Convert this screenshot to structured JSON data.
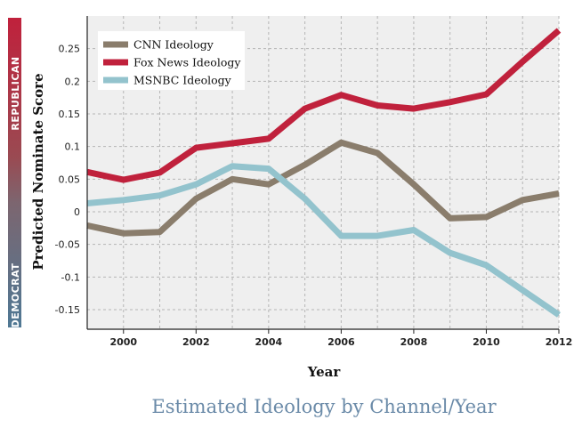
{
  "chart_data": {
    "type": "line",
    "title": "Estimated Ideology by Channel/Year",
    "xlabel": "Year",
    "ylabel": "Predicted Nominate Score",
    "xlim": [
      1999,
      2012
    ],
    "ylim": [
      -0.18,
      0.3
    ],
    "x_ticks": [
      2000,
      2002,
      2004,
      2006,
      2008,
      2010,
      2012
    ],
    "y_ticks": [
      -0.15,
      -0.1,
      -0.05,
      0,
      0.05,
      0.1,
      0.15,
      0.2,
      0.25
    ],
    "y_tick_labels": [
      "-0.15",
      "-0.1",
      "-0.05",
      "0",
      "0.05",
      "0.1",
      "0.15",
      "0.2",
      "0.25"
    ],
    "grid": true,
    "legend_position": "top-left",
    "side_labels": {
      "top": "REPUBLICAN",
      "bottom": "DEMOCRAT"
    },
    "x": [
      1999,
      2000,
      2001,
      2002,
      2003,
      2004,
      2005,
      2006,
      2007,
      2008,
      2009,
      2010,
      2011,
      2012
    ],
    "series": [
      {
        "name": "CNN Ideology",
        "color": "#8a7d6c",
        "values": [
          -0.021,
          -0.033,
          -0.031,
          0.02,
          0.05,
          0.042,
          0.072,
          0.106,
          0.09,
          0.042,
          -0.01,
          -0.008,
          0.018,
          0.028
        ]
      },
      {
        "name": "Fox News Ideology",
        "color": "#c0213c",
        "values": [
          0.061,
          0.049,
          0.06,
          0.098,
          0.105,
          0.112,
          0.158,
          0.179,
          0.163,
          0.158,
          0.168,
          0.18,
          0.23,
          0.278
        ]
      },
      {
        "name": "MSNBC Ideology",
        "color": "#93c3cd",
        "values": [
          0.013,
          0.018,
          0.025,
          0.042,
          0.07,
          0.066,
          0.02,
          -0.037,
          -0.037,
          -0.028,
          -0.063,
          -0.082,
          -0.12,
          -0.158
        ]
      }
    ]
  }
}
